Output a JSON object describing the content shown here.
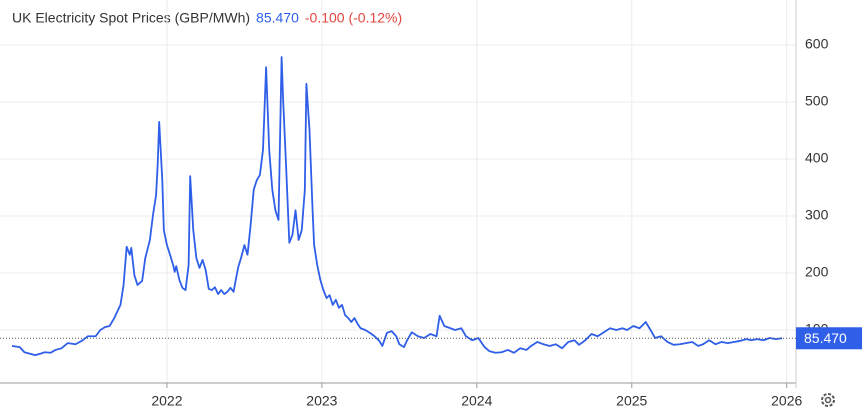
{
  "chart_data": {
    "type": "line",
    "title": "UK Electricity Spot Prices (GBP/MWh)",
    "last": {
      "value": 85.47,
      "label": "85.470"
    },
    "change": "-0.100 (-0.12%)",
    "grid": true,
    "xlim": [
      2021.0,
      2026.06
    ],
    "ylim": [
      7,
      660
    ],
    "xticks": [
      2022,
      2023,
      2024,
      2025,
      2026
    ],
    "yticks": [
      100,
      200,
      300,
      400,
      500,
      600
    ],
    "series": [
      {
        "name": "UK Electricity Spot Prices (GBP/MWh)",
        "color": "#2f5fe8",
        "x": [
          2021.0,
          2021.05,
          2021.08,
          2021.15,
          2021.18,
          2021.21,
          2021.25,
          2021.28,
          2021.32,
          2021.36,
          2021.41,
          2021.45,
          2021.49,
          2021.54,
          2021.57,
          2021.6,
          2021.63,
          2021.66,
          2021.7,
          2021.72,
          2021.74,
          2021.76,
          2021.77,
          2021.79,
          2021.81,
          2021.84,
          2021.86,
          2021.89,
          2021.91,
          2021.93,
          2021.94,
          2021.95,
          2021.97,
          2021.98,
          2022.0,
          2022.02,
          2022.04,
          2022.05,
          2022.06,
          2022.08,
          2022.1,
          2022.12,
          2022.14,
          2022.15,
          2022.17,
          2022.19,
          2022.21,
          2022.23,
          2022.25,
          2022.27,
          2022.29,
          2022.31,
          2022.33,
          2022.35,
          2022.37,
          2022.39,
          2022.41,
          2022.43,
          2022.45,
          2022.46,
          2022.48,
          2022.5,
          2022.52,
          2022.54,
          2022.56,
          2022.58,
          2022.6,
          2022.62,
          2022.64,
          2022.66,
          2022.68,
          2022.7,
          2022.72,
          2022.74,
          2022.75,
          2022.77,
          2022.79,
          2022.81,
          2022.83,
          2022.85,
          2022.87,
          2022.89,
          2022.9,
          2022.92,
          2022.94,
          2022.95,
          2022.97,
          2022.99,
          2023.01,
          2023.03,
          2023.05,
          2023.07,
          2023.09,
          2023.11,
          2023.13,
          2023.15,
          2023.17,
          2023.19,
          2023.21,
          2023.23,
          2023.25,
          2023.28,
          2023.31,
          2023.34,
          2023.37,
          2023.39,
          2023.42,
          2023.45,
          2023.48,
          2023.5,
          2023.53,
          2023.55,
          2023.58,
          2023.62,
          2023.66,
          2023.7,
          2023.74,
          2023.76,
          2023.79,
          2023.83,
          2023.86,
          2023.9,
          2023.93,
          2023.97,
          2024.01,
          2024.05,
          2024.08,
          2024.12,
          2024.16,
          2024.2,
          2024.24,
          2024.28,
          2024.32,
          2024.35,
          2024.39,
          2024.43,
          2024.47,
          2024.51,
          2024.55,
          2024.59,
          2024.63,
          2024.66,
          2024.7,
          2024.74,
          2024.78,
          2024.82,
          2024.86,
          2024.9,
          2024.94,
          2024.97,
          2025.01,
          2025.05,
          2025.09,
          2025.13,
          2025.15,
          2025.19,
          2025.23,
          2025.27,
          2025.31,
          2025.35,
          2025.39,
          2025.43,
          2025.46,
          2025.5,
          2025.54,
          2025.58,
          2025.62,
          2025.66,
          2025.7,
          2025.74,
          2025.77,
          2025.81,
          2025.85,
          2025.89,
          2025.93,
          2025.97
        ],
        "values": [
          72,
          70,
          61,
          56,
          58,
          61,
          60,
          65,
          68,
          77,
          75,
          81,
          89,
          89,
          100,
          105,
          107,
          121,
          144,
          179,
          246,
          232,
          244,
          196,
          179,
          186,
          226,
          258,
          302,
          337,
          389,
          465,
          363,
          275,
          249,
          232,
          214,
          202,
          212,
          188,
          174,
          170,
          214,
          370,
          275,
          226,
          209,
          223,
          205,
          172,
          170,
          175,
          163,
          170,
          163,
          167,
          174,
          167,
          196,
          210,
          228,
          249,
          232,
          284,
          346,
          363,
          372,
          416,
          561,
          416,
          346,
          310,
          293,
          579,
          503,
          381,
          253,
          267,
          310,
          258,
          275,
          346,
          532,
          451,
          310,
          249,
          214,
          188,
          170,
          156,
          161,
          144,
          153,
          139,
          144,
          126,
          121,
          114,
          121,
          111,
          103,
          100,
          95,
          89,
          81,
          72,
          95,
          98,
          89,
          75,
          70,
          82,
          96,
          89,
          86,
          93,
          89,
          125,
          107,
          103,
          100,
          103,
          89,
          82,
          86,
          70,
          63,
          60,
          61,
          65,
          60,
          68,
          65,
          72,
          79,
          75,
          72,
          75,
          68,
          79,
          82,
          74,
          82,
          93,
          89,
          96,
          103,
          100,
          103,
          100,
          107,
          103,
          114,
          96,
          86,
          89,
          79,
          74,
          75,
          77,
          79,
          72,
          75,
          82,
          75,
          79,
          77,
          79,
          81,
          84,
          82,
          84,
          82,
          86,
          84,
          85.47
        ]
      }
    ]
  }
}
